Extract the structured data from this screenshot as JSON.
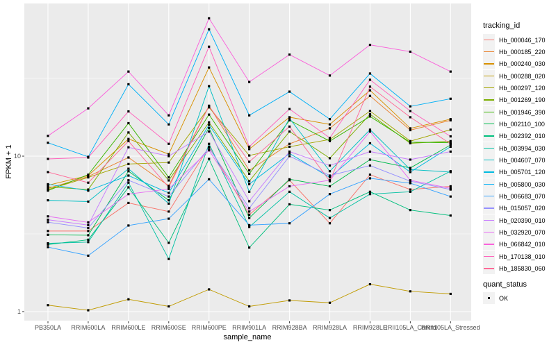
{
  "axes": {
    "x_title": "sample_name",
    "y_title": "FPKM + 1",
    "y_ticks": [
      {
        "label": "1",
        "value": 1
      },
      {
        "label": "10",
        "value": 10
      }
    ]
  },
  "legend": {
    "tracking_title": "tracking_id",
    "quant_title": "quant_status",
    "quant_items": [
      {
        "label": "OK",
        "marker": "black-square"
      }
    ]
  },
  "colors": {
    "panel_background": "#EBEBEB",
    "gridline": "#FFFFFF",
    "tick_text": "#4D4D4D",
    "point_color": "#000000",
    "legend_key_background": "#F2F2F2"
  },
  "chart_data": {
    "type": "line",
    "title": "",
    "xlabel": "sample_name",
    "ylabel": "FPKM + 1",
    "y_scale": "log10",
    "ylim": [
      0.95,
      95
    ],
    "y_major_gridlines": [
      1,
      10
    ],
    "y_minor_gridlines": [
      3.162,
      31.62
    ],
    "grid": "on",
    "legend_position": "right",
    "point_shape": "filled-square",
    "x_categories": [
      "PB350LA",
      "RRIM600LA",
      "RRIM600LE",
      "RRIM600SE",
      "RRIM600PE",
      "RRIM901LA",
      "RRIM928BA",
      "RRIM928LA",
      "RRIM928LE",
      "RRII105LA_Control",
      "RRII105LA_Stressed"
    ],
    "series": [
      {
        "name": "Hb_000046_170",
        "color": "#F8766D",
        "values": [
          3.3,
          3.3,
          5.0,
          4.4,
          11.5,
          4.2,
          7.0,
          3.7,
          7.6,
          6.1,
          6.4
        ]
      },
      {
        "name": "Hb_000185_220",
        "color": "#EA8331",
        "values": [
          6.2,
          7.4,
          9.8,
          6.45,
          21.1,
          8.1,
          12.0,
          15.1,
          24.4,
          14.7,
          17.0
        ]
      },
      {
        "name": "Hb_000240_030",
        "color": "#D89000",
        "values": [
          6.5,
          7.5,
          12.9,
          10.3,
          37.2,
          11.1,
          17.8,
          16.0,
          26.5,
          15.1,
          17.3
        ]
      },
      {
        "name": "Hb_000288_020",
        "color": "#C09B00",
        "values": [
          1.1,
          1.02,
          1.2,
          1.08,
          1.39,
          1.08,
          1.18,
          1.14,
          1.5,
          1.35,
          1.3
        ]
      },
      {
        "name": "Hb_000297_120",
        "color": "#A3A500",
        "values": [
          6.1,
          7.3,
          8.9,
          9.1,
          20.6,
          10.1,
          11.5,
          12.8,
          19.5,
          12.5,
          14.8
        ]
      },
      {
        "name": "Hb_001269_190",
        "color": "#7CAE00",
        "values": [
          6.35,
          6.1,
          14.2,
          6.98,
          16.5,
          6.9,
          14.4,
          9.7,
          18.6,
          12.1,
          12.5
        ]
      },
      {
        "name": "Hb_001946_390",
        "color": "#39B600",
        "values": [
          6.0,
          7.6,
          16.3,
          7.3,
          18.5,
          7.7,
          17.0,
          12.5,
          18.0,
          12.3,
          12.2
        ]
      },
      {
        "name": "Hb_002110_100",
        "color": "#00BB4E",
        "values": [
          3.12,
          3.1,
          8.0,
          5.2,
          15.2,
          4.0,
          7.1,
          6.4,
          9.5,
          8.4,
          11.8
        ]
      },
      {
        "name": "Hb_002392_010",
        "color": "#00BF7D",
        "values": [
          2.7,
          2.9,
          6.3,
          2.77,
          9.6,
          2.58,
          4.9,
          4.5,
          5.9,
          4.5,
          4.15
        ]
      },
      {
        "name": "Hb_003994_030",
        "color": "#00C1A3",
        "values": [
          2.75,
          2.8,
          6.75,
          2.18,
          12.0,
          3.5,
          5.9,
          4.0,
          5.7,
          5.9,
          8.0
        ]
      },
      {
        "name": "Hb_004607_070",
        "color": "#00BFC4",
        "values": [
          5.2,
          5.1,
          8.3,
          4.95,
          28.2,
          5.9,
          17.5,
          8.0,
          14.8,
          8.2,
          7.9
        ]
      },
      {
        "name": "Hb_005701_120",
        "color": "#00BAE0",
        "values": [
          6.6,
          6.0,
          7.5,
          5.8,
          15.9,
          6.6,
          10.4,
          7.3,
          12.1,
          7.9,
          11.5
        ]
      },
      {
        "name": "Hb_005800_030",
        "color": "#00B0F6",
        "values": [
          12.2,
          9.9,
          29.0,
          16.0,
          65.5,
          18.3,
          26.0,
          17.3,
          34.0,
          20.9,
          23.4
        ]
      },
      {
        "name": "Hb_006683_070",
        "color": "#35A2FF",
        "values": [
          2.6,
          2.29,
          3.58,
          3.96,
          7.1,
          3.6,
          3.7,
          5.7,
          7.2,
          6.7,
          5.5
        ]
      },
      {
        "name": "Hb_015057_020",
        "color": "#9590FF",
        "values": [
          3.76,
          3.45,
          7.0,
          5.5,
          11.3,
          4.63,
          10.0,
          7.5,
          8.7,
          6.9,
          6.1
        ]
      },
      {
        "name": "Hb_020390_010",
        "color": "#C77CFF",
        "values": [
          3.9,
          3.6,
          11.4,
          10.0,
          14.4,
          5.13,
          10.7,
          8.7,
          10.7,
          9.5,
          10.7
        ]
      },
      {
        "name": "Hb_032920_070",
        "color": "#E76BF3",
        "values": [
          4.1,
          3.75,
          5.7,
          6.15,
          10.9,
          4.4,
          6.4,
          7.0,
          14.4,
          7.0,
          6.2
        ]
      },
      {
        "name": "Hb_066842_010",
        "color": "#FA62DB",
        "values": [
          13.5,
          20.3,
          35.0,
          18.3,
          77.0,
          30.0,
          45.0,
          33.0,
          52.0,
          47.0,
          35.0
        ]
      },
      {
        "name": "Hb_170138_010",
        "color": "#FF62BC",
        "values": [
          9.6,
          9.8,
          19.4,
          12.0,
          50.6,
          11.5,
          20.1,
          13.1,
          31.0,
          19.5,
          13.4
        ]
      },
      {
        "name": "Hb_185830_060",
        "color": "#FF6A98",
        "values": [
          7.9,
          6.75,
          12.5,
          6.3,
          21.0,
          9.2,
          15.5,
          6.9,
          28.0,
          17.8,
          12.0
        ]
      }
    ],
    "quant_status": "OK"
  }
}
